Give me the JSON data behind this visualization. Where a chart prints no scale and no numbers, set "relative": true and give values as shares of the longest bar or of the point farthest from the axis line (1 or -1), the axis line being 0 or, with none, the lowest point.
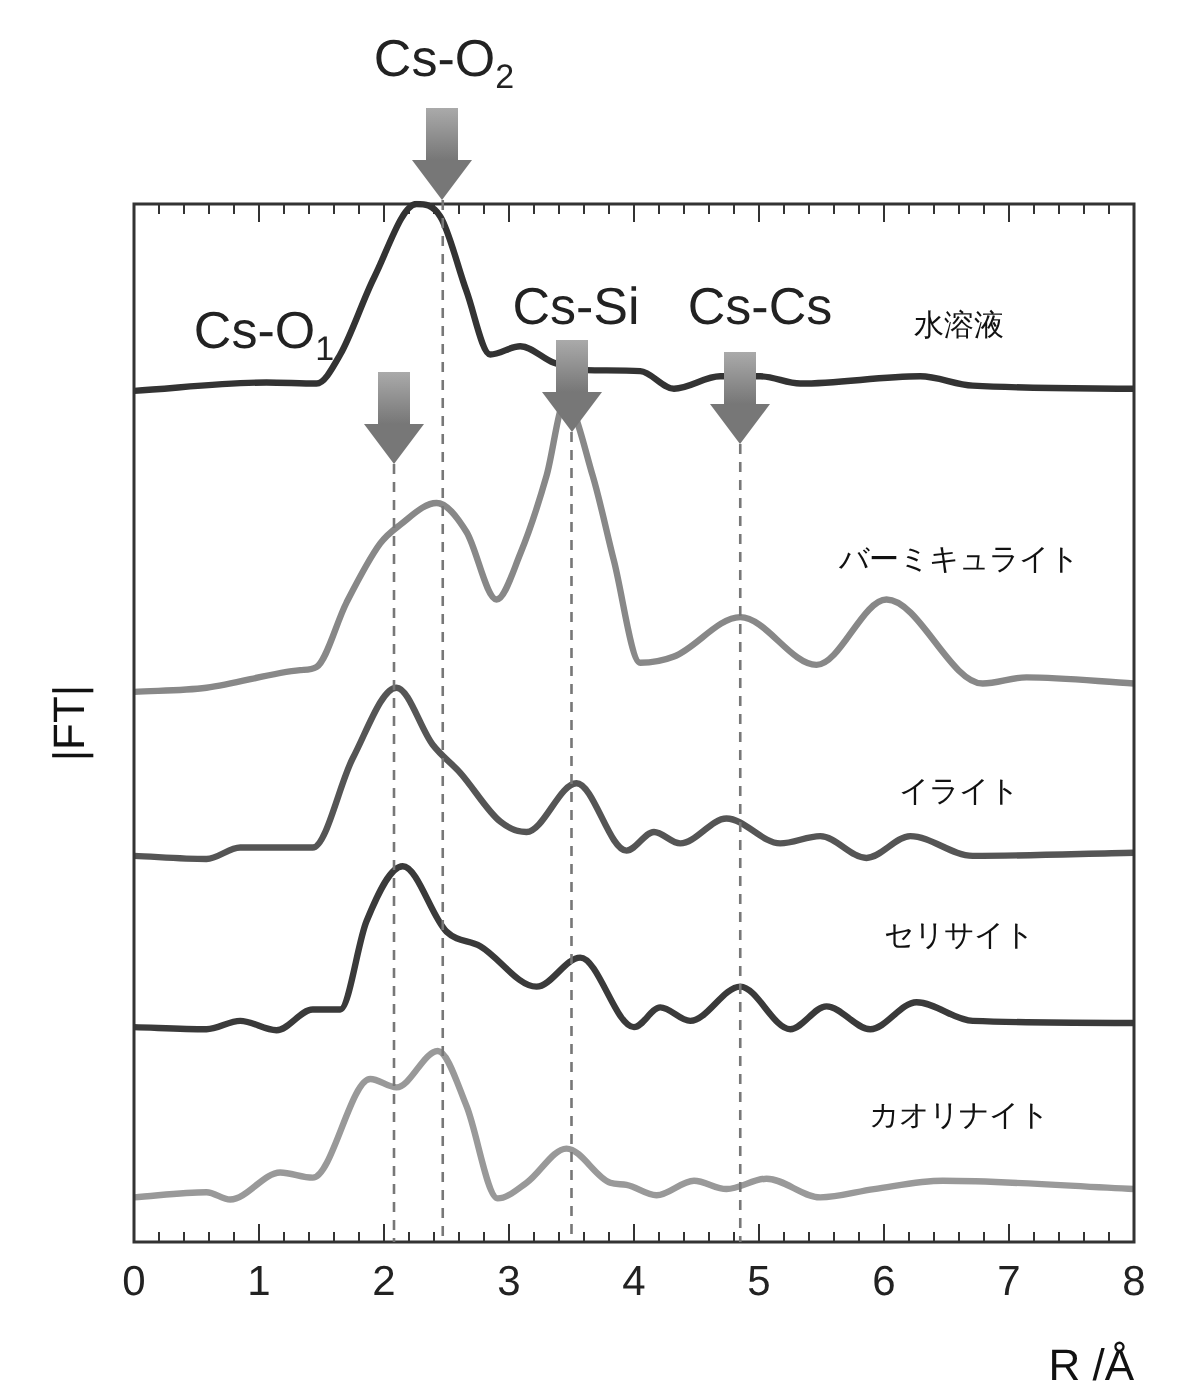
{
  "chart_data": {
    "type": "line",
    "relative": true,
    "xlabel": "R /Å",
    "ylabel": "|FT|",
    "xlim": [
      0,
      8
    ],
    "xticks": [
      0,
      1,
      2,
      3,
      4,
      5,
      6,
      7,
      8
    ],
    "grid": false,
    "legend": false,
    "marker": "none",
    "line_style": "solid",
    "series": [
      {
        "name": "水溶液",
        "color": "#333333",
        "x": [
          0,
          1.06,
          1.46,
          1.65,
          1.92,
          2.26,
          2.45,
          2.66,
          2.85,
          3.09,
          3.36,
          3.62,
          4.05,
          4.32,
          4.69,
          5.01,
          5.33,
          6.29,
          6.71,
          8
        ],
        "values": [
          0.82,
          0.828,
          0.827,
          0.855,
          0.929,
          1,
          0.988,
          0.916,
          0.855,
          0.863,
          0.847,
          0.84,
          0.839,
          0.822,
          0.834,
          0.834,
          0.827,
          0.834,
          0.825,
          0.822
        ]
      },
      {
        "name": "バーミキュライト",
        "color": "#888888",
        "x": [
          0,
          0.58,
          1.33,
          1.46,
          1.7,
          1.97,
          2.13,
          2.42,
          2.66,
          2.9,
          3.09,
          3.3,
          3.45,
          3.67,
          3.84,
          4.05,
          4.32,
          4.85,
          5.46,
          6.02,
          6.79,
          7.14,
          8
        ],
        "values": [
          0.53,
          0.534,
          0.551,
          0.554,
          0.616,
          0.673,
          0.691,
          0.712,
          0.684,
          0.619,
          0.663,
          0.738,
          0.81,
          0.738,
          0.656,
          0.558,
          0.564,
          0.602,
          0.556,
          0.619,
          0.538,
          0.544,
          0.538
        ]
      },
      {
        "name": "イライト",
        "color": "#555555",
        "x": [
          0,
          0.58,
          0.85,
          1.43,
          1.75,
          2.1,
          2.39,
          2.61,
          2.93,
          3.14,
          3.54,
          3.94,
          4.16,
          4.37,
          4.74,
          5.17,
          5.49,
          5.86,
          6.21,
          6.71,
          8
        ],
        "values": [
          0.372,
          0.369,
          0.38,
          0.38,
          0.466,
          0.534,
          0.479,
          0.452,
          0.405,
          0.395,
          0.442,
          0.377,
          0.395,
          0.384,
          0.408,
          0.384,
          0.391,
          0.37,
          0.391,
          0.372,
          0.375
        ]
      },
      {
        "name": "セリサイト",
        "color": "#3a3a3a",
        "x": [
          0,
          0.58,
          0.85,
          1.14,
          1.43,
          1.65,
          1.86,
          2.15,
          2.5,
          2.77,
          3.22,
          3.57,
          4,
          4.21,
          4.45,
          4.85,
          5.25,
          5.54,
          5.89,
          6.26,
          6.71,
          8
        ],
        "values": [
          0.207,
          0.205,
          0.213,
          0.204,
          0.224,
          0.224,
          0.309,
          0.362,
          0.299,
          0.285,
          0.246,
          0.274,
          0.207,
          0.226,
          0.213,
          0.246,
          0.205,
          0.227,
          0.205,
          0.231,
          0.213,
          0.211
        ]
      },
      {
        "name": "カオリナイト",
        "color": "#999999",
        "x": [
          0,
          0.58,
          0.77,
          1.17,
          1.43,
          1.89,
          2.1,
          2.43,
          2.66,
          2.91,
          3.14,
          3.46,
          3.81,
          3.94,
          4.18,
          4.48,
          4.74,
          5.06,
          5.49,
          5.92,
          6.47,
          8
        ],
        "values": [
          0.043,
          0.048,
          0.041,
          0.067,
          0.062,
          0.157,
          0.149,
          0.184,
          0.131,
          0.042,
          0.057,
          0.09,
          0.057,
          0.055,
          0.045,
          0.059,
          0.051,
          0.061,
          0.043,
          0.051,
          0.059,
          0.051
        ]
      }
    ],
    "ref_lines": [
      {
        "axis": "x",
        "value": 2.08,
        "label": "Cs-O$_{1}$",
        "line_style": "dashed",
        "color": "#777777"
      },
      {
        "axis": "x",
        "value": 2.47,
        "label": "Cs-O$_{2}$",
        "line_style": "dashed",
        "color": "#777777"
      },
      {
        "axis": "x",
        "value": 3.5,
        "label": "Cs-Si",
        "line_style": "dashed",
        "color": "#777777"
      },
      {
        "axis": "x",
        "value": 4.85,
        "label": "Cs-Cs",
        "line_style": "dashed",
        "color": "#777777"
      }
    ]
  }
}
